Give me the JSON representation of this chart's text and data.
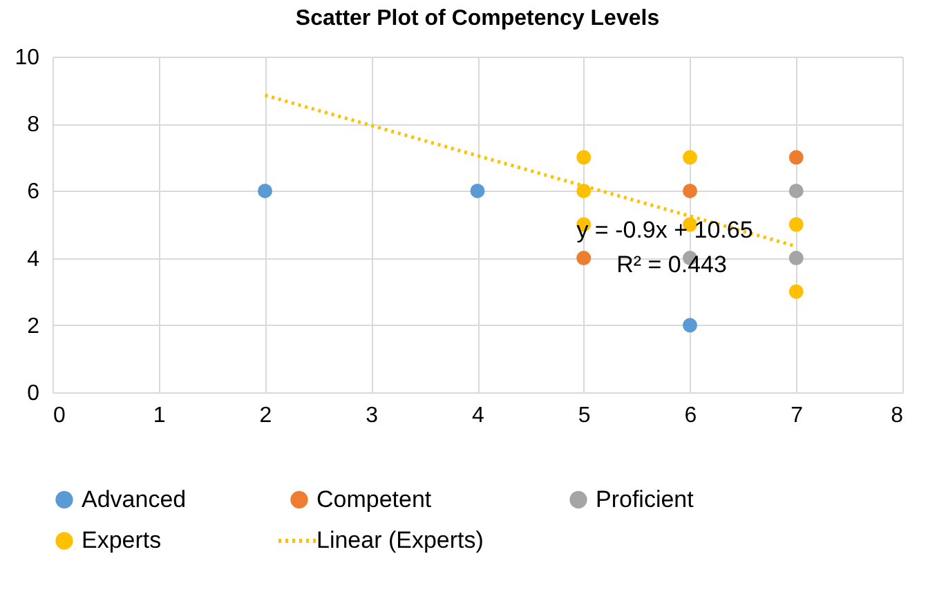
{
  "chart_data": {
    "type": "scatter",
    "title": "Scatter Plot of Competency Levels",
    "xlim": [
      0,
      8
    ],
    "xticks": [
      0,
      1,
      2,
      3,
      4,
      5,
      6,
      7,
      8
    ],
    "ylim": [
      0,
      10
    ],
    "yticks": [
      0,
      2,
      4,
      6,
      8,
      10
    ],
    "grid": true,
    "legend": "bottom",
    "series": [
      {
        "name": "Advanced",
        "color": "#5b9bd5",
        "marker": "circle",
        "x": [
          2,
          4,
          6
        ],
        "values": [
          6,
          6,
          2
        ]
      },
      {
        "name": "Competent",
        "color": "#ed7d31",
        "marker": "circle",
        "x": [
          5,
          6,
          7
        ],
        "values": [
          4,
          6,
          7
        ]
      },
      {
        "name": "Proficient",
        "color": "#a5a5a5",
        "marker": "circle",
        "x": [
          6,
          7,
          7
        ],
        "values": [
          4,
          6,
          4
        ]
      },
      {
        "name": "Experts",
        "color": "#ffc000",
        "marker": "circle",
        "x": [
          5,
          5,
          5,
          6,
          6,
          7,
          7
        ],
        "values": [
          7,
          6,
          5,
          7,
          5,
          5,
          3
        ]
      },
      {
        "name": "Linear (Experts)",
        "type": "line",
        "color": "#ffc000",
        "line_style": "dotted",
        "x": [
          2,
          7
        ],
        "values": [
          8.85,
          4.35
        ]
      }
    ],
    "annotations": [
      "y = -0.9x + 10.65",
      "R² = 0.443"
    ]
  }
}
